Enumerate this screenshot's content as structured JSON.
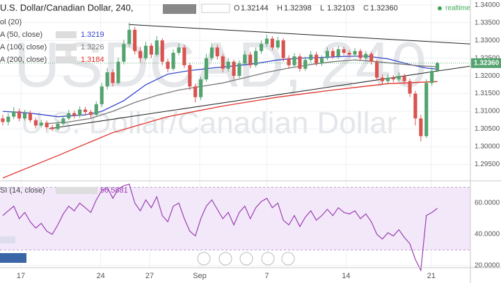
{
  "chart_data": {
    "type": "candlestick",
    "title": "U.S. Dollar/Canadian Dollar, 240,",
    "watermark": "USDCAD, 240",
    "watermark_subtitle": "U.S. Dollar/Canadian Dollar",
    "status": "realtime",
    "ohlc": [
      {
        "key": "O",
        "value": 1.32144
      },
      {
        "key": "H",
        "value": 1.32398
      },
      {
        "key": "L",
        "value": 1.32103
      },
      {
        "key": "C",
        "value": 1.3236,
        "label": "1.32360"
      }
    ],
    "volume_legend": "ol (20)",
    "up_color": "#53a36f",
    "down_color": "#d9534f",
    "xlim": [
      -0.5,
      85
    ],
    "xticks": [
      {
        "value": 3.3,
        "label": "17"
      },
      {
        "value": 17.8,
        "label": "24"
      },
      {
        "value": 26.7,
        "label": "27"
      },
      {
        "value": 35.8,
        "label": "Sep"
      },
      {
        "value": 48,
        "label": "7"
      },
      {
        "value": 62.4,
        "label": "14"
      },
      {
        "value": 77.9,
        "label": "21"
      }
    ],
    "ylim": [
      1.2908,
      1.3414
    ],
    "yticks": [
      {
        "value": 1.34,
        "label": "1.34000"
      },
      {
        "value": 1.335,
        "label": "1.33500"
      },
      {
        "value": 1.33,
        "label": "1.33000"
      },
      {
        "value": 1.325,
        "label": "1.32500"
      },
      {
        "value": 1.32,
        "label": "1.32000"
      },
      {
        "value": 1.315,
        "label": "1.31500"
      },
      {
        "value": 1.31,
        "label": "1.31000"
      },
      {
        "value": 1.305,
        "label": "1.30500"
      },
      {
        "value": 1.3,
        "label": "1.30000"
      },
      {
        "value": 1.295,
        "label": "1.29500"
      }
    ],
    "grid": true,
    "candles": [
      [
        1.308,
        1.309,
        1.306,
        1.307
      ],
      [
        1.307,
        1.3095,
        1.306,
        1.3085
      ],
      [
        1.3085,
        1.3112,
        1.3078,
        1.31
      ],
      [
        1.31,
        1.3108,
        1.3072,
        1.308
      ],
      [
        1.308,
        1.3104,
        1.3074,
        1.3095
      ],
      [
        1.3095,
        1.3102,
        1.3068,
        1.3075
      ],
      [
        1.3075,
        1.3082,
        1.3052,
        1.306
      ],
      [
        1.306,
        1.3076,
        1.3054,
        1.3068
      ],
      [
        1.3068,
        1.3074,
        1.3048,
        1.3055
      ],
      [
        1.3055,
        1.3062,
        1.3044,
        1.305
      ],
      [
        1.305,
        1.3072,
        1.3045,
        1.3065
      ],
      [
        1.3065,
        1.3088,
        1.306,
        1.308
      ],
      [
        1.308,
        1.3104,
        1.3075,
        1.3095
      ],
      [
        1.3095,
        1.3102,
        1.308,
        1.3088
      ],
      [
        1.3088,
        1.3114,
        1.3082,
        1.3105
      ],
      [
        1.3105,
        1.3112,
        1.309,
        1.3098
      ],
      [
        1.3098,
        1.3104,
        1.3082,
        1.309
      ],
      [
        1.309,
        1.3128,
        1.3085,
        1.312
      ],
      [
        1.312,
        1.318,
        1.3112,
        1.317
      ],
      [
        1.317,
        1.3222,
        1.3162,
        1.321
      ],
      [
        1.321,
        1.3218,
        1.317,
        1.318
      ],
      [
        1.318,
        1.3252,
        1.3175,
        1.324
      ],
      [
        1.324,
        1.3302,
        1.3232,
        1.329
      ],
      [
        1.329,
        1.335,
        1.3282,
        1.333
      ],
      [
        1.333,
        1.3338,
        1.326,
        1.327
      ],
      [
        1.327,
        1.3282,
        1.3238,
        1.325
      ],
      [
        1.325,
        1.3296,
        1.3244,
        1.3285
      ],
      [
        1.3285,
        1.3292,
        1.325,
        1.326
      ],
      [
        1.326,
        1.3312,
        1.3254,
        1.33
      ],
      [
        1.33,
        1.3306,
        1.323,
        1.324
      ],
      [
        1.324,
        1.3248,
        1.321,
        1.322
      ],
      [
        1.322,
        1.3274,
        1.3214,
        1.3265
      ],
      [
        1.3265,
        1.3292,
        1.3258,
        1.328
      ],
      [
        1.328,
        1.3288,
        1.3222,
        1.323
      ],
      [
        1.323,
        1.3236,
        1.316,
        1.317
      ],
      [
        1.317,
        1.3178,
        1.3125,
        1.314
      ],
      [
        1.314,
        1.3198,
        1.3132,
        1.319
      ],
      [
        1.319,
        1.3262,
        1.3184,
        1.325
      ],
      [
        1.325,
        1.3292,
        1.3244,
        1.328
      ],
      [
        1.328,
        1.3288,
        1.3246,
        1.3255
      ],
      [
        1.3255,
        1.3262,
        1.321,
        1.322
      ],
      [
        1.322,
        1.325,
        1.3212,
        1.324
      ],
      [
        1.324,
        1.3246,
        1.319,
        1.32
      ],
      [
        1.32,
        1.3244,
        1.3194,
        1.3235
      ],
      [
        1.3235,
        1.327,
        1.3228,
        1.326
      ],
      [
        1.326,
        1.3268,
        1.3222,
        1.323
      ],
      [
        1.323,
        1.328,
        1.3224,
        1.327
      ],
      [
        1.327,
        1.33,
        1.3262,
        1.329
      ],
      [
        1.329,
        1.3316,
        1.3282,
        1.3305
      ],
      [
        1.3305,
        1.3312,
        1.3272,
        1.328
      ],
      [
        1.328,
        1.331,
        1.3274,
        1.33
      ],
      [
        1.33,
        1.3306,
        1.324,
        1.325
      ],
      [
        1.325,
        1.3258,
        1.322,
        1.323
      ],
      [
        1.323,
        1.3264,
        1.3224,
        1.3255
      ],
      [
        1.3255,
        1.3262,
        1.3212,
        1.322
      ],
      [
        1.322,
        1.3254,
        1.3214,
        1.3245
      ],
      [
        1.3245,
        1.327,
        1.3238,
        1.326
      ],
      [
        1.326,
        1.3268,
        1.3228,
        1.3235
      ],
      [
        1.3235,
        1.3258,
        1.3228,
        1.325
      ],
      [
        1.325,
        1.328,
        1.3244,
        1.327
      ],
      [
        1.327,
        1.3278,
        1.3248,
        1.3255
      ],
      [
        1.3255,
        1.3284,
        1.3248,
        1.3275
      ],
      [
        1.3275,
        1.3282,
        1.3258,
        1.3265
      ],
      [
        1.3265,
        1.3272,
        1.3252,
        1.326
      ],
      [
        1.326,
        1.3278,
        1.3254,
        1.327
      ],
      [
        1.327,
        1.3276,
        1.3242,
        1.325
      ],
      [
        1.325,
        1.327,
        1.3244,
        1.3262
      ],
      [
        1.3262,
        1.3268,
        1.3232,
        1.324
      ],
      [
        1.324,
        1.3246,
        1.3186,
        1.3195
      ],
      [
        1.3195,
        1.3204,
        1.3176,
        1.3185
      ],
      [
        1.3185,
        1.3204,
        1.3178,
        1.3195
      ],
      [
        1.3195,
        1.3202,
        1.3182,
        1.319
      ],
      [
        1.319,
        1.321,
        1.3184,
        1.32
      ],
      [
        1.32,
        1.3206,
        1.3176,
        1.3185
      ],
      [
        1.3185,
        1.3192,
        1.314,
        1.315
      ],
      [
        1.315,
        1.3158,
        1.306,
        1.308
      ],
      [
        1.308,
        1.309,
        1.3015,
        1.303
      ],
      [
        1.303,
        1.319,
        1.3025,
        1.318
      ],
      [
        1.318,
        1.3224,
        1.3172,
        1.3214
      ],
      [
        1.32144,
        1.32398,
        1.32103,
        1.3236
      ]
    ],
    "series": [
      {
        "name": "A (50, close)",
        "legend_value": 1.3219,
        "color": "#3344cc",
        "x": [
          0,
          5,
          10,
          15,
          18,
          22,
          26,
          30,
          34,
          38,
          42,
          46,
          50,
          54,
          58,
          62,
          66,
          70,
          74,
          77,
          79
        ],
        "values": [
          1.31,
          1.3095,
          1.3085,
          1.309,
          1.31,
          1.313,
          1.3175,
          1.3205,
          1.3215,
          1.3222,
          1.3228,
          1.3235,
          1.3245,
          1.325,
          1.3252,
          1.3255,
          1.3256,
          1.3248,
          1.3232,
          1.3222,
          1.3219
        ]
      },
      {
        "name": "A (100, close)",
        "legend_value": 1.3226,
        "color": "#777777",
        "x": [
          8,
          12,
          16,
          20,
          24,
          28,
          32,
          36,
          40,
          44,
          48,
          52,
          56,
          60,
          64,
          68,
          72,
          76,
          79
        ],
        "values": [
          1.3065,
          1.307,
          1.308,
          1.31,
          1.3125,
          1.3145,
          1.316,
          1.317,
          1.318,
          1.3195,
          1.321,
          1.3222,
          1.3232,
          1.324,
          1.3245,
          1.324,
          1.3234,
          1.3228,
          1.3226
        ]
      },
      {
        "name": "A (200, close)",
        "legend_value": 1.3184,
        "color": "#e0302a",
        "x": [
          0,
          10,
          20,
          30,
          40,
          50,
          60,
          70,
          76,
          79
        ],
        "values": [
          1.2912,
          1.2975,
          1.304,
          1.3085,
          1.3115,
          1.314,
          1.316,
          1.3178,
          1.3182,
          1.3184
        ]
      }
    ],
    "trendlines": [
      {
        "x": [
          22.9,
          85
        ],
        "values": [
          1.3345,
          1.329
        ]
      },
      {
        "x": [
          8.4,
          85
        ],
        "values": [
          1.3051,
          1.32275
        ]
      }
    ],
    "rsi": {
      "name": "SI (14, close)",
      "last": 56.5881,
      "color": "#9a3fb0",
      "band": [
        30,
        70
      ],
      "band_color": "#f3e8fa",
      "ylim": [
        18.7,
        73.3
      ],
      "yticks": [
        {
          "value": 60,
          "label": "60.0000"
        },
        {
          "value": 40,
          "label": "40.0000"
        },
        {
          "value": 20,
          "label": "20.0000"
        }
      ],
      "values": [
        52,
        55,
        58,
        50,
        54,
        48,
        44,
        47,
        42,
        40,
        46,
        53,
        58,
        55,
        60,
        57,
        54,
        62,
        68,
        70,
        63,
        69,
        71,
        72,
        60,
        55,
        62,
        57,
        64,
        52,
        48,
        58,
        60,
        50,
        42,
        39,
        50,
        58,
        62,
        56,
        50,
        54,
        46,
        54,
        58,
        50,
        57,
        61,
        63,
        57,
        60,
        49,
        46,
        52,
        45,
        51,
        55,
        49,
        52,
        56,
        52,
        57,
        54,
        53,
        55,
        50,
        53,
        48,
        40,
        37,
        41,
        39,
        43,
        38,
        34,
        24,
        17,
        52,
        54,
        56.5881
      ]
    }
  }
}
